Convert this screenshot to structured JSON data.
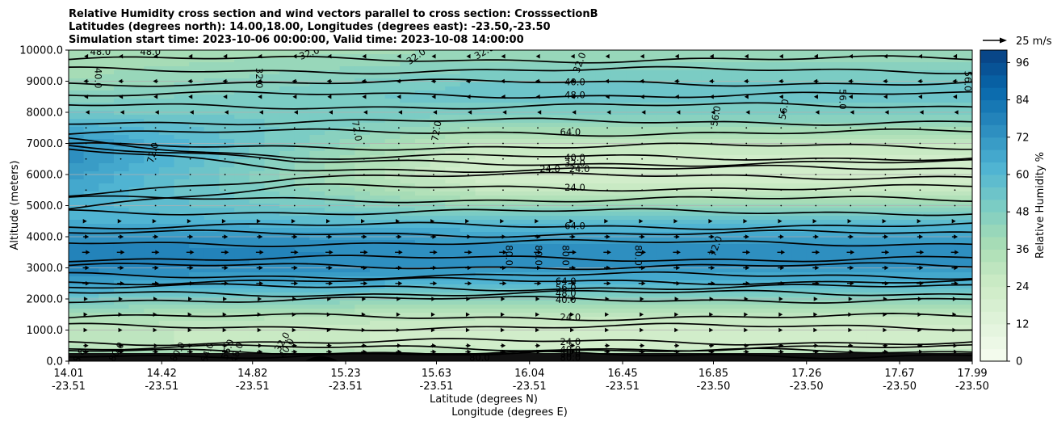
{
  "chart_data": {
    "type": "heatmap",
    "title_lines": [
      "Relative Humidity cross section and wind vectors parallel to cross section: CrosssectionB",
      "Latitudes (degrees north): 14.00,18.00, Longitudes (degrees east): -23.50,-23.50",
      "Simulation start time: 2023-10-06 00:00:00, Valid time: 2023-10-08 14:00:00"
    ],
    "xlabel_1": "Latitude (degrees N)",
    "xlabel_2": "Longitude (degrees E)",
    "ylabel": "Altitude (meters)",
    "colorbar_label": "Relative Humidity %",
    "quiver_key_label": "25 m/s",
    "x_ticks_lat": [
      "14.01",
      "14.42",
      "14.82",
      "15.23",
      "15.63",
      "16.04",
      "16.45",
      "16.85",
      "17.26",
      "17.67",
      "17.99"
    ],
    "x_ticks_lon": [
      "-23.51",
      "-23.51",
      "-23.51",
      "-23.51",
      "-23.51",
      "-23.51",
      "-23.51",
      "-23.50",
      "-23.50",
      "-23.50",
      "-23.50"
    ],
    "y_ticks": [
      "0.0",
      "1000.0",
      "2000.0",
      "3000.0",
      "4000.0",
      "5000.0",
      "6000.0",
      "7000.0",
      "8000.0",
      "9000.0",
      "10000.0"
    ],
    "y_range": [
      0,
      10000
    ],
    "colorbar_ticks": [
      "0",
      "12",
      "24",
      "36",
      "48",
      "60",
      "72",
      "84",
      "96"
    ],
    "colorbar_range": [
      0,
      100
    ],
    "colormap": [
      "#f7fcf0",
      "#e0f3db",
      "#ccebc5",
      "#a8ddb5",
      "#7bccc4",
      "#4eb3d3",
      "#2b8cbe",
      "#0868ac",
      "#084081"
    ],
    "rh_profile": {
      "altitudes": [
        0,
        300,
        500,
        1000,
        1500,
        2000,
        2500,
        3000,
        3500,
        4000,
        4500,
        5000,
        5500,
        6000,
        6500,
        7000,
        7500,
        8000,
        8500,
        9000,
        9500,
        10000
      ],
      "left_end": [
        80,
        40,
        30,
        30,
        38,
        52,
        68,
        78,
        80,
        74,
        64,
        62,
        66,
        70,
        74,
        74,
        64,
        52,
        46,
        40,
        38,
        36
      ],
      "right_end": [
        80,
        30,
        22,
        22,
        30,
        45,
        62,
        72,
        74,
        70,
        56,
        42,
        28,
        20,
        22,
        28,
        40,
        50,
        54,
        52,
        46,
        40
      ]
    },
    "contour_labels": [
      {
        "text": "48.0",
        "x_lat": 14.15,
        "alt": 9950,
        "rot": 0
      },
      {
        "text": "48.0",
        "x_lat": 14.37,
        "alt": 9950,
        "rot": 0
      },
      {
        "text": "32.0",
        "x_lat": 15.07,
        "alt": 9900,
        "rot": -20
      },
      {
        "text": "32.0",
        "x_lat": 15.54,
        "alt": 9800,
        "rot": -35
      },
      {
        "text": "32.0",
        "x_lat": 15.84,
        "alt": 9950,
        "rot": -30
      },
      {
        "text": "32.0",
        "x_lat": 16.26,
        "alt": 9600,
        "rot": -70
      },
      {
        "text": "40.0",
        "x_lat": 14.14,
        "alt": 9100,
        "rot": 90
      },
      {
        "text": "32.0",
        "x_lat": 14.85,
        "alt": 9100,
        "rot": 90
      },
      {
        "text": "40.0",
        "x_lat": 16.24,
        "alt": 8980,
        "rot": 0
      },
      {
        "text": "48.0",
        "x_lat": 16.24,
        "alt": 8560,
        "rot": 0
      },
      {
        "text": "56.0",
        "x_lat": 17.97,
        "alt": 9000,
        "rot": 90
      },
      {
        "text": "56.0",
        "x_lat": 17.42,
        "alt": 8420,
        "rot": 90
      },
      {
        "text": "56.0",
        "x_lat": 17.16,
        "alt": 8100,
        "rot": -80
      },
      {
        "text": "56.0",
        "x_lat": 16.86,
        "alt": 7880,
        "rot": -80
      },
      {
        "text": "72.0",
        "x_lat": 15.28,
        "alt": 7400,
        "rot": 80
      },
      {
        "text": "72.0",
        "x_lat": 15.63,
        "alt": 7400,
        "rot": -80
      },
      {
        "text": "64.0",
        "x_lat": 16.22,
        "alt": 7370,
        "rot": 0
      },
      {
        "text": "72.0",
        "x_lat": 14.38,
        "alt": 6700,
        "rot": -75
      },
      {
        "text": "40.0",
        "x_lat": 16.24,
        "alt": 6550,
        "rot": 0
      },
      {
        "text": "32.0",
        "x_lat": 16.24,
        "alt": 6370,
        "rot": 0
      },
      {
        "text": "24.0",
        "x_lat": 16.13,
        "alt": 6180,
        "rot": 0
      },
      {
        "text": "24.0",
        "x_lat": 16.26,
        "alt": 6180,
        "rot": 0
      },
      {
        "text": "24.0",
        "x_lat": 16.24,
        "alt": 5580,
        "rot": 0
      },
      {
        "text": "64.0",
        "x_lat": 16.24,
        "alt": 4350,
        "rot": 0
      },
      {
        "text": "72.0",
        "x_lat": 16.86,
        "alt": 3700,
        "rot": -70
      },
      {
        "text": "80.0",
        "x_lat": 15.95,
        "alt": 3400,
        "rot": 90
      },
      {
        "text": "80.0",
        "x_lat": 16.08,
        "alt": 3400,
        "rot": 90
      },
      {
        "text": "80.0",
        "x_lat": 16.2,
        "alt": 3400,
        "rot": 90
      },
      {
        "text": "80.0",
        "x_lat": 16.52,
        "alt": 3400,
        "rot": 90
      },
      {
        "text": "64.0",
        "x_lat": 16.2,
        "alt": 2570,
        "rot": 0
      },
      {
        "text": "56.0",
        "x_lat": 16.2,
        "alt": 2370,
        "rot": 0
      },
      {
        "text": "48.0",
        "x_lat": 16.2,
        "alt": 2180,
        "rot": 0
      },
      {
        "text": "40.0",
        "x_lat": 16.2,
        "alt": 1980,
        "rot": 0
      },
      {
        "text": "24.0",
        "x_lat": 16.22,
        "alt": 1420,
        "rot": 0
      },
      {
        "text": "24.0",
        "x_lat": 16.22,
        "alt": 620,
        "rot": 0
      },
      {
        "text": "40.0",
        "x_lat": 16.22,
        "alt": 380,
        "rot": 0
      },
      {
        "text": "56.0",
        "x_lat": 16.22,
        "alt": 250,
        "rot": 0
      },
      {
        "text": "80.0",
        "x_lat": 16.22,
        "alt": 120,
        "rot": 0
      },
      {
        "text": "32.0",
        "x_lat": 14.95,
        "alt": 620,
        "rot": -60
      },
      {
        "text": "40.0",
        "x_lat": 14.97,
        "alt": 420,
        "rot": -60
      },
      {
        "text": "56.0",
        "x_lat": 14.71,
        "alt": 380,
        "rot": -70
      },
      {
        "text": "64.0",
        "x_lat": 14.62,
        "alt": 280,
        "rot": -70
      },
      {
        "text": "80.0",
        "x_lat": 14.49,
        "alt": 300,
        "rot": -60
      },
      {
        "text": "48.0",
        "x_lat": 14.75,
        "alt": 280,
        "rot": -70
      },
      {
        "text": "80.0",
        "x_lat": 14.22,
        "alt": 300,
        "rot": -60
      },
      {
        "text": "88.8",
        "x_lat": 14.05,
        "alt": 100,
        "rot": -60
      },
      {
        "text": "80.0",
        "x_lat": 15.82,
        "alt": 120,
        "rot": 0
      }
    ],
    "wind_vector_rows": [
      {
        "alt": 9800,
        "u": -0.6
      },
      {
        "alt": 9000,
        "u": -0.8
      },
      {
        "alt": 8500,
        "u": -0.6
      },
      {
        "alt": 8000,
        "u": -0.2
      },
      {
        "alt": 7500,
        "u": -0.15
      },
      {
        "alt": 7000,
        "u": -0.1
      },
      {
        "alt": 6500,
        "u": -0.1
      },
      {
        "alt": 6000,
        "u": -0.1
      },
      {
        "alt": 5500,
        "u": 0.1
      },
      {
        "alt": 5000,
        "u": 0.1
      },
      {
        "alt": 4500,
        "u": 0.3
      },
      {
        "alt": 4000,
        "u": 0.9
      },
      {
        "alt": 3500,
        "u": 1.2
      },
      {
        "alt": 3000,
        "u": 1.0
      },
      {
        "alt": 2500,
        "u": 1.1
      },
      {
        "alt": 2000,
        "u": 0.6
      },
      {
        "alt": 1500,
        "u": 0.5
      },
      {
        "alt": 1000,
        "u": 0.5
      },
      {
        "alt": 500,
        "u": 0.8
      },
      {
        "alt": 300,
        "u": 0.9
      }
    ]
  },
  "colors": {
    "axis": "#000000",
    "grid": "#b0b0b0",
    "contour": "#000000"
  }
}
